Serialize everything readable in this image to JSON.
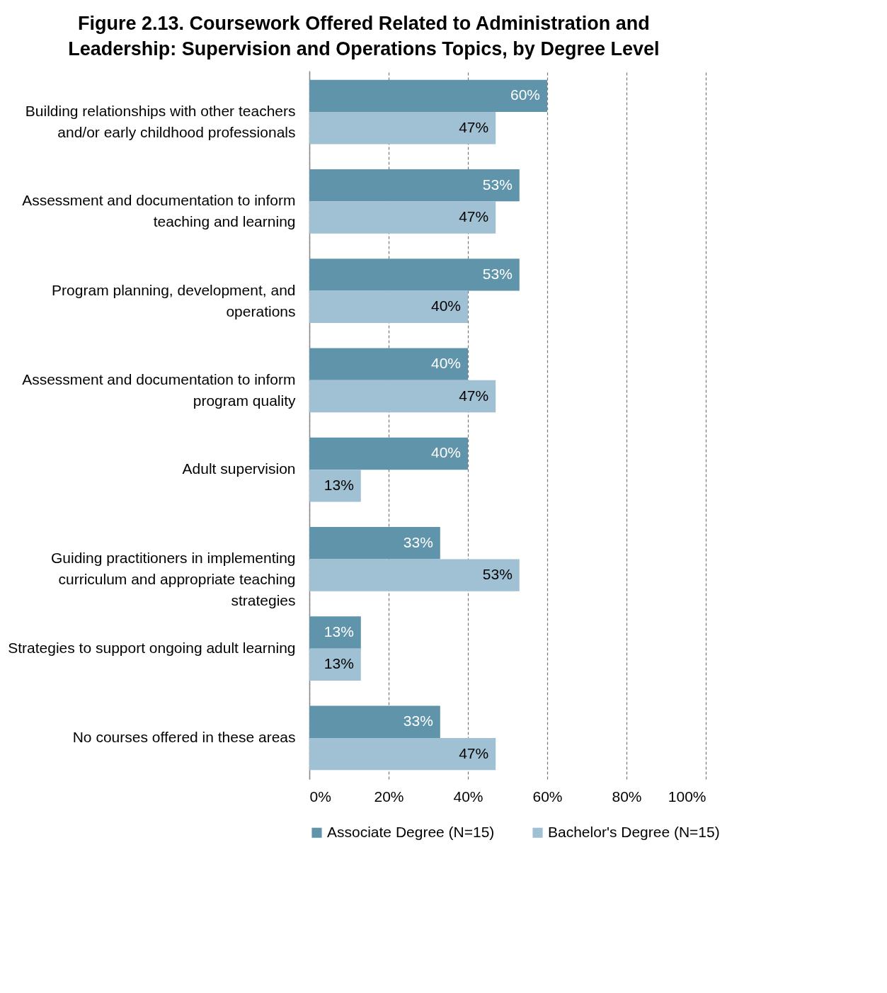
{
  "chart_data": {
    "type": "bar",
    "orientation": "horizontal",
    "title": "Figure 2.13. Coursework Offered Related to Administration and Leadership: Supervision and Operations Topics, by Degree Level",
    "categories": [
      "Building relationships with other teachers and/or early childhood professionals",
      "Assessment and documentation to inform teaching and learning",
      "Program planning, development, and operations",
      "Assessment and documentation to inform program quality",
      "Adult supervision",
      "Guiding practitioners in implementing curriculum and appropriate teaching strategies",
      "Strategies to support ongoing adult learning",
      "No courses offered in these areas"
    ],
    "series": [
      {
        "name": "Associate Degree (N=15)",
        "color": "#5f94ab",
        "values": [
          60,
          53,
          53,
          40,
          40,
          33,
          13,
          33
        ],
        "value_labels": [
          "60%",
          "53%",
          "53%",
          "40%",
          "40%",
          "33%",
          "13%",
          "33%"
        ]
      },
      {
        "name": "Bachelor's Degree (N=15)",
        "color": "#a0c0d3",
        "values": [
          47,
          47,
          40,
          47,
          13,
          53,
          13,
          47
        ],
        "value_labels": [
          "47%",
          "47%",
          "40%",
          "47%",
          "13%",
          "53%",
          "13%",
          "47%"
        ]
      }
    ],
    "xlim": [
      0,
      100
    ],
    "xticks": [
      {
        "value": 0,
        "label": "0%"
      },
      {
        "value": 20,
        "label": "20%"
      },
      {
        "value": 40,
        "label": "40%"
      },
      {
        "value": 60,
        "label": "60%"
      },
      {
        "value": 80,
        "label": "80%"
      },
      {
        "value": 100,
        "label": "100%"
      }
    ],
    "grid": "x",
    "legend": "bottom"
  }
}
